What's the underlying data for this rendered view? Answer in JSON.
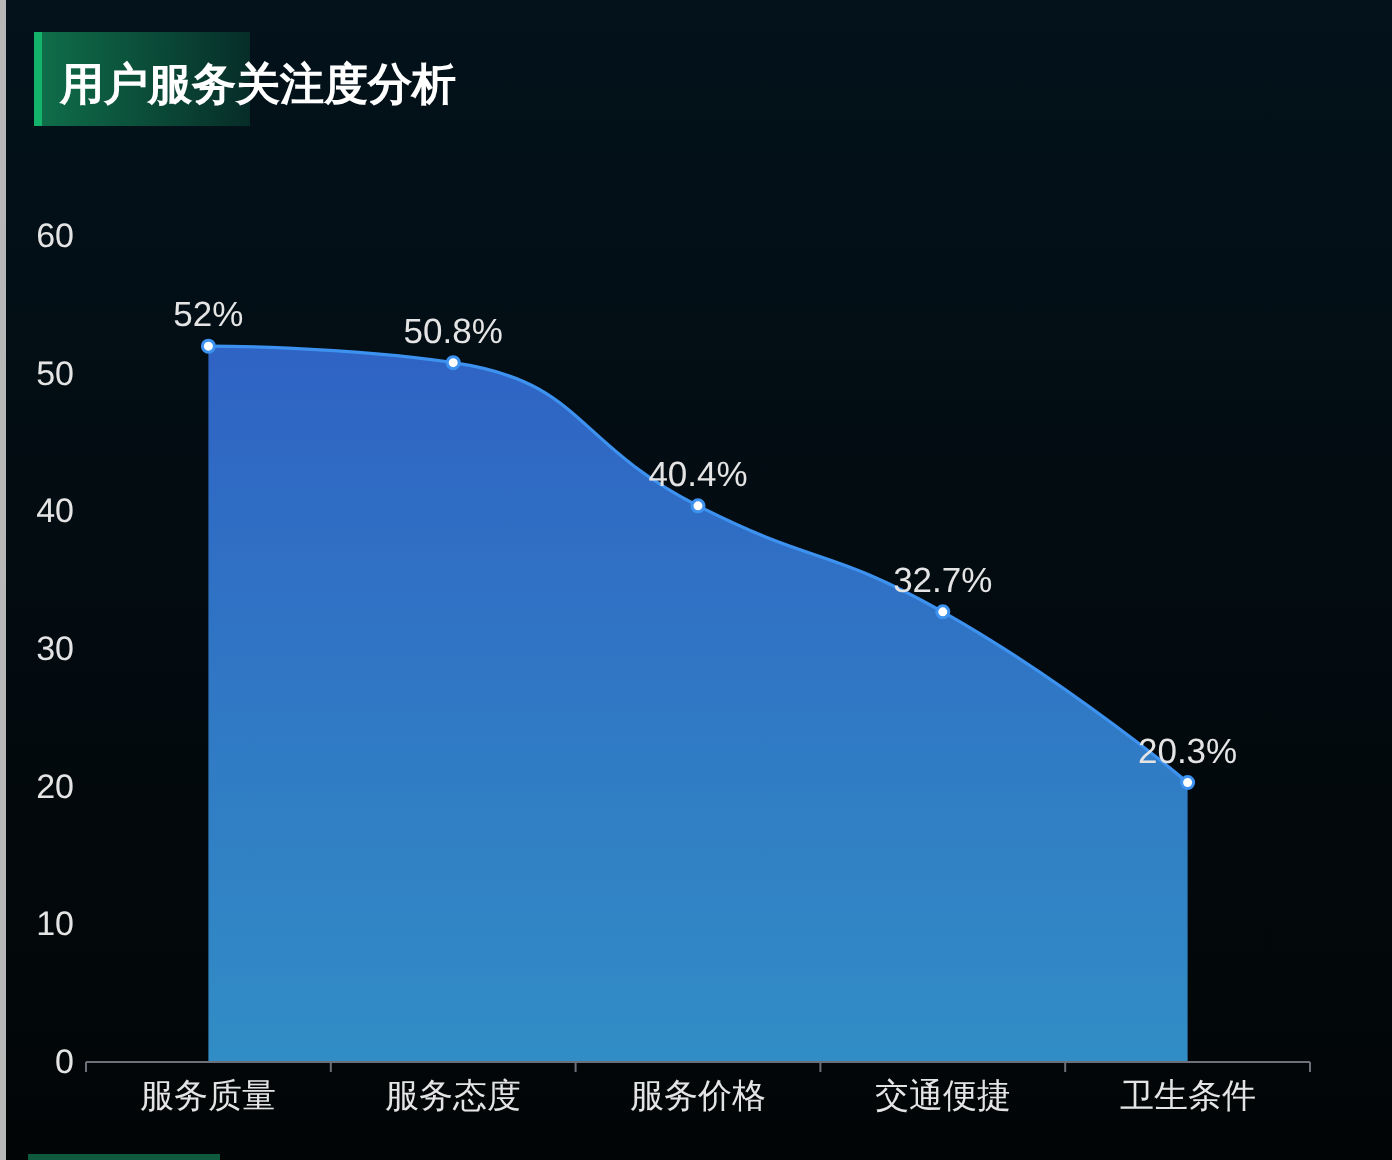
{
  "chart_data": {
    "type": "area",
    "title": "用户服务关注度分析",
    "categories": [
      "服务质量",
      "服务态度",
      "服务价格",
      "交通便捷",
      "卫生条件"
    ],
    "values": [
      52,
      50.8,
      40.4,
      32.7,
      20.3
    ],
    "value_labels": [
      "52%",
      "50.8%",
      "40.4%",
      "32.7%",
      "20.3%"
    ],
    "color": "#2f63c4",
    "marker": "circle",
    "ylim": [
      0,
      60
    ],
    "yticks": [
      0,
      10,
      20,
      30,
      40,
      50,
      60
    ]
  }
}
